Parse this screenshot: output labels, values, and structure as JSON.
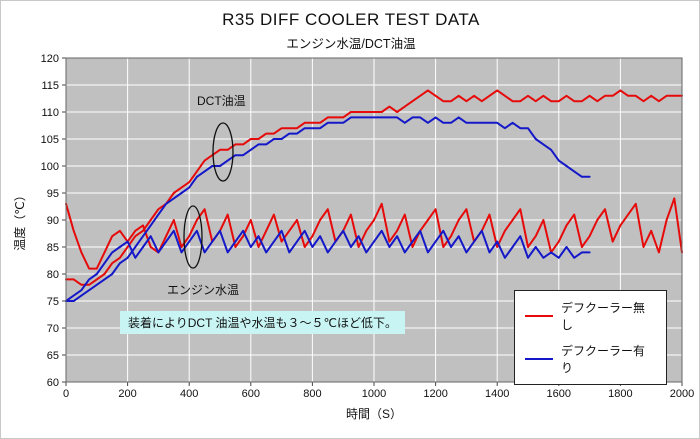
{
  "chart_data": {
    "type": "line",
    "title": "R35 DIFF COOLER TEST DATA",
    "subtitle": "エンジン水温/DCT油温",
    "xlabel": "時間（S）",
    "ylabel": "温度（℃）",
    "xlim": [
      0,
      2000
    ],
    "ylim": [
      60,
      120
    ],
    "x_ticks": [
      0,
      200,
      400,
      600,
      800,
      1000,
      1200,
      1400,
      1600,
      1800,
      2000
    ],
    "y_ticks": [
      60,
      65,
      70,
      75,
      80,
      85,
      90,
      95,
      100,
      105,
      110,
      115,
      120
    ],
    "grid": true,
    "grid_color": "#ffffff",
    "plot_bg": "#c0c0c0",
    "x_step": 25,
    "legend": [
      {
        "label": "デフクーラー無し",
        "color": "#e60a0a"
      },
      {
        "label": "デフクーラー有り",
        "color": "#1418c8"
      }
    ],
    "annotations": {
      "dct_label": "DCT油温",
      "water_label": "エンジン水温",
      "note": "装着によりDCT 油温や水温も３～５℃ほど低下。"
    },
    "series": [
      {
        "id": "red-dct",
        "name": "デフクーラー無し DCT油温",
        "color": "#e60a0a",
        "x0": 0,
        "values": [
          79,
          79,
          78,
          78,
          79,
          80,
          82,
          83,
          85,
          87,
          88,
          90,
          92,
          93,
          95,
          96,
          97,
          99,
          101,
          102,
          103,
          103,
          104,
          104,
          105,
          105,
          106,
          106,
          107,
          107,
          107,
          108,
          108,
          108,
          109,
          109,
          109,
          110,
          110,
          110,
          110,
          110,
          111,
          110,
          111,
          112,
          113,
          114,
          113,
          112,
          112,
          113,
          112,
          113,
          112,
          113,
          114,
          113,
          112,
          112,
          113,
          112,
          113,
          112,
          112,
          113,
          112,
          112,
          113,
          112,
          113,
          113,
          114,
          113,
          113,
          112,
          113,
          112,
          113,
          113,
          113
        ]
      },
      {
        "id": "red-water",
        "name": "デフクーラー無し エンジン水温",
        "color": "#e60a0a",
        "x0": 0,
        "values": [
          93,
          88,
          84,
          81,
          81,
          84,
          87,
          88,
          86,
          88,
          89,
          85,
          84,
          87,
          90,
          85,
          87,
          90,
          92,
          86,
          88,
          91,
          85,
          87,
          90,
          85,
          88,
          91,
          86,
          88,
          90,
          85,
          87,
          90,
          92,
          86,
          88,
          91,
          85,
          88,
          90,
          93,
          86,
          88,
          91,
          85,
          88,
          90,
          92,
          85,
          87,
          90,
          92,
          86,
          88,
          91,
          85,
          88,
          90,
          92,
          85,
          87,
          90,
          84,
          86,
          89,
          91,
          85,
          87,
          90,
          92,
          86,
          89,
          91,
          93,
          85,
          88,
          84,
          90,
          94,
          84
        ]
      },
      {
        "id": "blue-dct",
        "name": "デフクーラー有り DCT油温",
        "color": "#1418c8",
        "x0": 0,
        "values": [
          75,
          75,
          76,
          77,
          78,
          79,
          80,
          82,
          83,
          85,
          87,
          89,
          91,
          93,
          94,
          95,
          96,
          98,
          99,
          100,
          100,
          101,
          102,
          102,
          103,
          104,
          104,
          105,
          105,
          106,
          106,
          107,
          107,
          107,
          108,
          108,
          108,
          109,
          109,
          109,
          109,
          109,
          109,
          109,
          108,
          109,
          109,
          108,
          109,
          108,
          108,
          109,
          108,
          108,
          108,
          108,
          108,
          107,
          108,
          107,
          107,
          105,
          104,
          103,
          101,
          100,
          99,
          98,
          98
        ]
      },
      {
        "id": "blue-water",
        "name": "デフクーラー有り エンジン水温",
        "color": "#1418c8",
        "x0": 0,
        "values": [
          75,
          76,
          77,
          79,
          80,
          82,
          84,
          85,
          86,
          83,
          85,
          87,
          84,
          86,
          88,
          84,
          86,
          88,
          84,
          86,
          88,
          84,
          86,
          88,
          85,
          87,
          84,
          86,
          88,
          84,
          86,
          88,
          85,
          87,
          84,
          86,
          88,
          85,
          87,
          84,
          86,
          88,
          85,
          87,
          84,
          86,
          88,
          84,
          86,
          88,
          85,
          87,
          84,
          86,
          88,
          84,
          86,
          83,
          85,
          87,
          83,
          85,
          83,
          84,
          83,
          85,
          83,
          84,
          84
        ]
      }
    ]
  }
}
